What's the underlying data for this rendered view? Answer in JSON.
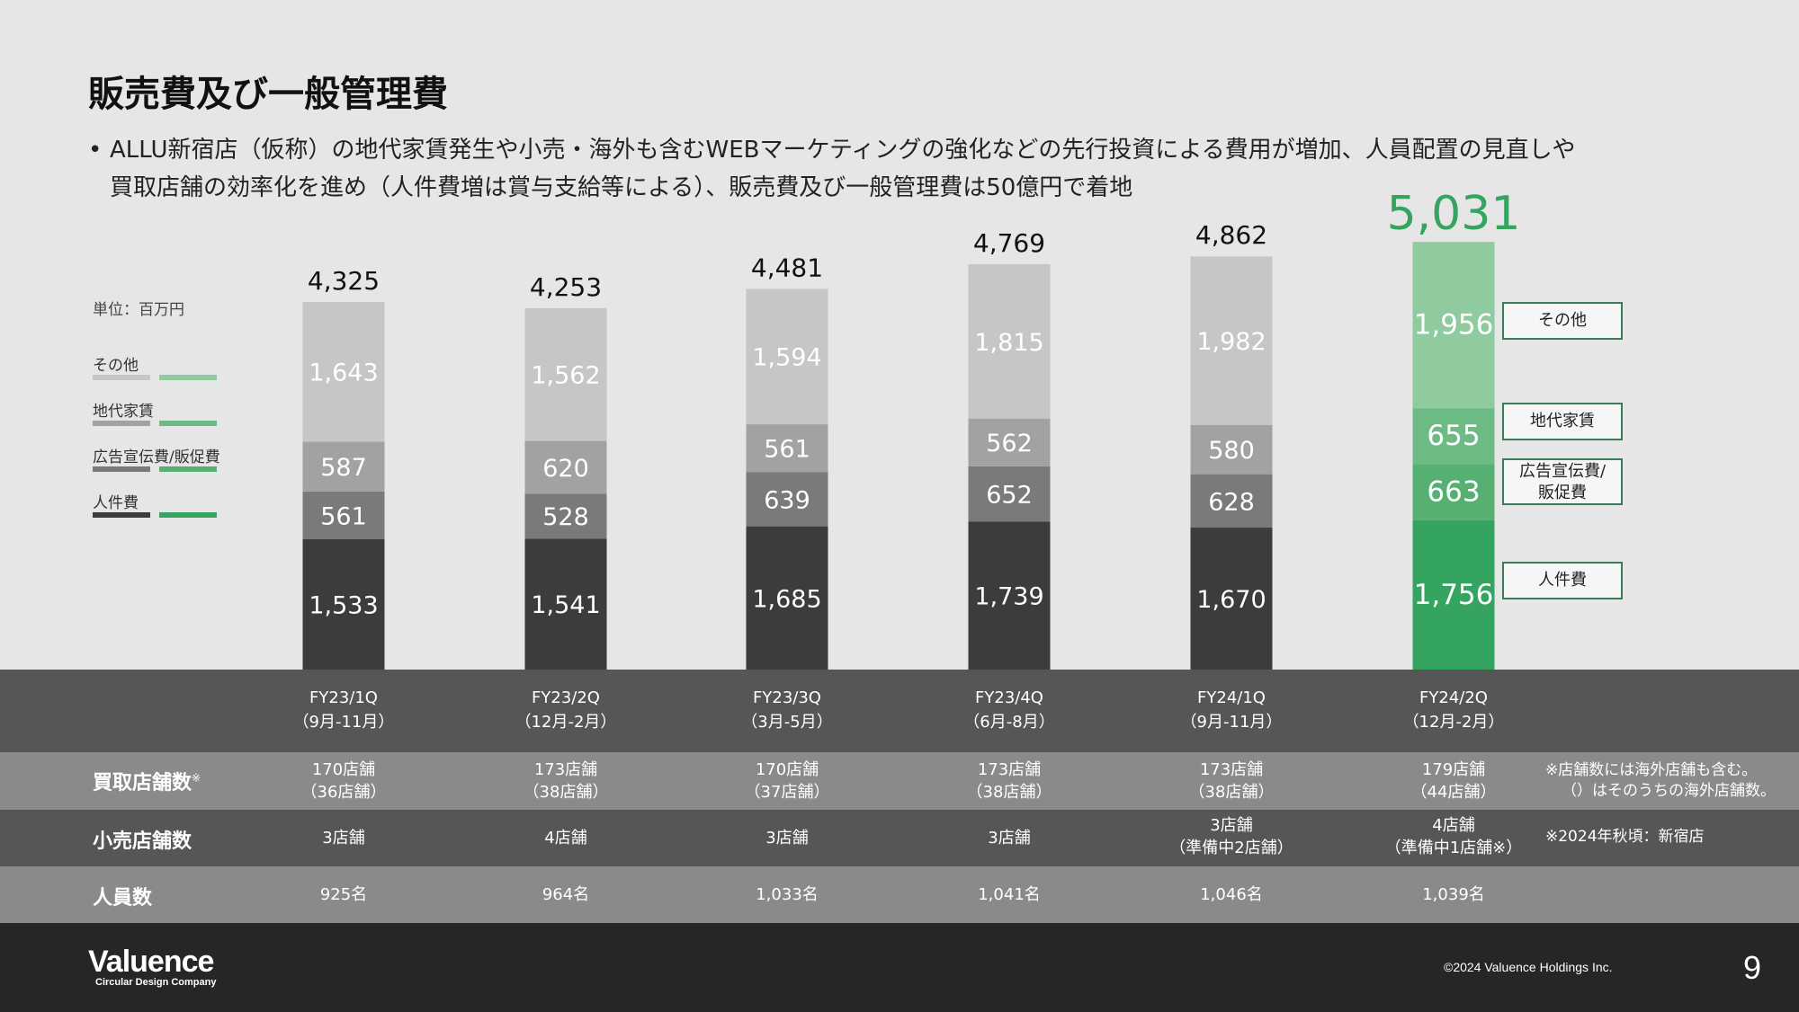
{
  "title": "販売費及び一般管理費",
  "bullet": {
    "dot": "•",
    "line1": "ALLU新宿店（仮称）の地代家賃発生や小売・海外も含むWEBマーケティングの強化などの先行投資による費用が増加、人員配置の見直しや",
    "line2": "買取店舗の効率化を進め（人件費増は賞与支給等による）、販売費及び一般管理費は50億円で着地"
  },
  "unit_label": "単位：百万円",
  "legend": [
    {
      "label": "その他",
      "gray": "#c6c6c6",
      "green": "#8fcb9e"
    },
    {
      "label": "地代家賃",
      "gray": "#a2a2a2",
      "green": "#6dbb84"
    },
    {
      "label": "広告宣伝費/販促費",
      "gray": "#7a7a7a",
      "green": "#56b072"
    },
    {
      "label": "人件費",
      "gray": "#3c3c3c",
      "green": "#35a460"
    }
  ],
  "callouts": {
    "other": "その他",
    "rent": "地代家賃",
    "ad_line1": "広告宣伝費/",
    "ad_line2": "販促費",
    "personnel": "人件費"
  },
  "chart_data": {
    "type": "bar",
    "stacked": true,
    "categories": [
      "FY23/1Q",
      "FY23/2Q",
      "FY23/3Q",
      "FY23/4Q",
      "FY24/1Q",
      "FY24/2Q"
    ],
    "series": [
      {
        "name": "人件費",
        "values": [
          1533,
          1541,
          1685,
          1739,
          1670,
          1756
        ],
        "color": "#3c3c3c",
        "highlight_color": "#35a460"
      },
      {
        "name": "広告宣伝費/販促費",
        "values": [
          561,
          528,
          639,
          652,
          628,
          663
        ],
        "color": "#7a7a7a",
        "highlight_color": "#56b072"
      },
      {
        "name": "地代家賃",
        "values": [
          587,
          620,
          561,
          562,
          580,
          655
        ],
        "color": "#a2a2a2",
        "highlight_color": "#6dbb84"
      },
      {
        "name": "その他",
        "values": [
          1643,
          1562,
          1594,
          1815,
          1982,
          1956
        ],
        "color": "#c6c6c6",
        "highlight_color": "#8fcb9e"
      }
    ],
    "value_labels": [
      [
        "1,533",
        "561",
        "587",
        "1,643"
      ],
      [
        "1,541",
        "528",
        "620",
        "1,562"
      ],
      [
        "1,685",
        "639",
        "561",
        "1,594"
      ],
      [
        "1,739",
        "652",
        "562",
        "1,815"
      ],
      [
        "1,670",
        "628",
        "580",
        "1,982"
      ],
      [
        "1,756",
        "663",
        "655",
        "1,956"
      ]
    ],
    "totals": [
      "4,325",
      "4,253",
      "4,481",
      "4,769",
      "4,862",
      "5,031"
    ],
    "highlight_index": 5,
    "highlight_total_color": "#35a460"
  },
  "periods": [
    {
      "q": "FY23/1Q",
      "months": "（9月-11月）"
    },
    {
      "q": "FY23/2Q",
      "months": "（12月-2月）"
    },
    {
      "q": "FY23/3Q",
      "months": "（3月-5月）"
    },
    {
      "q": "FY23/4Q",
      "months": "（6月-8月）"
    },
    {
      "q": "FY24/1Q",
      "months": "（9月-11月）"
    },
    {
      "q": "FY24/2Q",
      "months": "（12月-2月）"
    }
  ],
  "rows": {
    "buy_stores": {
      "label": "買取店舗数",
      "mark": "※",
      "values": [
        [
          "170店舗",
          "（36店舗）"
        ],
        [
          "173店舗",
          "（38店舗）"
        ],
        [
          "170店舗",
          "（37店舗）"
        ],
        [
          "173店舗",
          "（38店舗）"
        ],
        [
          "173店舗",
          "（38店舗）"
        ],
        [
          "179店舗",
          "（44店舗）"
        ]
      ],
      "note1": "※店舗数には海外店舗も含む。",
      "note2": "（）はそのうちの海外店舗数。"
    },
    "retail_stores": {
      "label": "小売店舗数",
      "values": [
        [
          "3店舗",
          ""
        ],
        [
          "4店舗",
          ""
        ],
        [
          "3店舗",
          ""
        ],
        [
          "3店舗",
          ""
        ],
        [
          "3店舗",
          "（準備中2店舗）"
        ],
        [
          "4店舗",
          "（準備中1店舗※）"
        ]
      ],
      "note": "※2024年秋頃：新宿店"
    },
    "headcount": {
      "label": "人員数",
      "values": [
        "925名",
        "964名",
        "1,033名",
        "1,041名",
        "1,046名",
        "1,039名"
      ]
    }
  },
  "footer": {
    "brand": "Valuence",
    "tagline": "Circular Design Company",
    "copyright": "©2024 Valuence Holdings Inc.",
    "page": "9"
  }
}
